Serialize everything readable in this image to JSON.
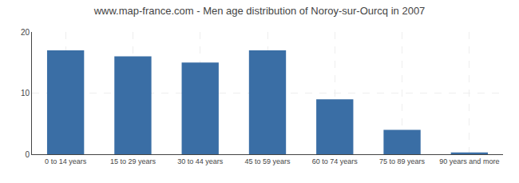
{
  "chart_data": {
    "type": "bar",
    "title": "www.map-france.com - Men age distribution of Noroy-sur-Ourcq in 2007",
    "categories": [
      "0 to 14 years",
      "15 to 29 years",
      "30 to 44 years",
      "45 to 59 years",
      "60 to 74 years",
      "75 to 89 years",
      "90 years and more"
    ],
    "values": [
      17,
      16,
      15,
      17,
      9,
      4,
      0.3
    ],
    "color": "#3a6ea5",
    "ylim": [
      0,
      20
    ],
    "yticks": [
      0,
      10,
      20
    ],
    "grid": true
  }
}
